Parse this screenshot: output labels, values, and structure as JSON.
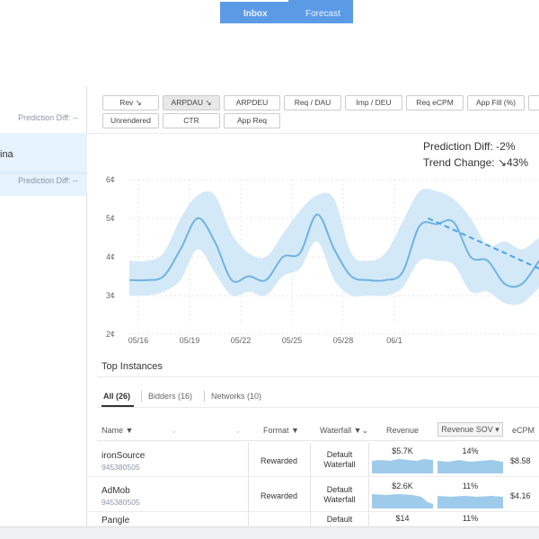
{
  "topbar": {
    "inbox": "Inbox",
    "forecast": "Forecast"
  },
  "left_panel": {
    "prediction_diff_1": "Prediction Diff: --",
    "selected_name": "ina",
    "prediction_diff_2": "Prediction Diff: --"
  },
  "metrics": {
    "row1": [
      {
        "label": "Rev ↘"
      },
      {
        "label": "ARPDAU ↘"
      },
      {
        "label": "ARPDEU"
      },
      {
        "label": "Req / DAU"
      },
      {
        "label": "Imp / DEU"
      },
      {
        "label": "Req eCPM"
      },
      {
        "label": "App Fill (%)"
      }
    ],
    "row2": [
      {
        "label": "Unrendered"
      },
      {
        "label": "CTR"
      },
      {
        "label": "App Req"
      }
    ],
    "active": "ARPDAU ↘"
  },
  "summary": {
    "prediction_diff": "Prediction Diff: -2%",
    "trend_change": "Trend Change: ↘43%"
  },
  "chart_data": {
    "type": "line",
    "yticks": [
      "6¢",
      "5¢",
      "4¢",
      "3¢",
      "2¢"
    ],
    "ylim": [
      2,
      6
    ],
    "xticks": [
      "05/16",
      "05/19",
      "05/22",
      "05/25",
      "05/28",
      "06/1"
    ],
    "x": [
      0,
      1,
      2,
      3,
      4,
      5,
      6,
      7,
      8,
      9,
      10,
      11,
      12,
      13,
      14,
      15,
      16,
      17,
      18,
      19,
      20,
      21,
      22,
      23,
      24
    ],
    "series": [
      {
        "values": [
          3.4,
          3.4,
          3.5,
          4.2,
          5.0,
          4.4,
          3.4,
          3.5,
          3.4,
          4.0,
          4.1,
          5.1,
          4.2,
          3.5,
          3.4,
          3.4,
          3.6,
          4.8,
          4.85,
          4.9,
          4.0,
          3.9,
          3.3,
          3.3,
          3.9
        ]
      }
    ],
    "band_upper": [
      3.9,
      3.9,
      4.1,
      5.0,
      5.6,
      5.6,
      4.6,
      4.1,
      4.0,
      4.6,
      5.2,
      5.6,
      5.5,
      4.1,
      3.9,
      4.1,
      4.9,
      5.7,
      5.7,
      5.5,
      5.0,
      4.3,
      4.4,
      4.2,
      4.5
    ],
    "band_lower": [
      3.0,
      3.0,
      3.1,
      3.4,
      4.2,
      3.6,
      3.0,
      3.1,
      3.0,
      3.5,
      3.7,
      4.4,
      3.4,
      3.0,
      3.0,
      3.0,
      3.2,
      3.9,
      3.9,
      3.8,
      3.1,
      3.1,
      2.8,
      2.8,
      3.2
    ],
    "trend_line": {
      "x": [
        17.5,
        24.5
      ],
      "y": [
        5.0,
        3.6
      ]
    },
    "grid": true
  },
  "top_instances": {
    "title": "Top Instances",
    "tabs": [
      "All (26)",
      "Bidders (16)",
      "Networks (10)"
    ],
    "headers": {
      "name": "Name ▼",
      "format": "Format ▼",
      "waterfall": "Waterfall ▼⌄",
      "revenue": "Revenue",
      "revenue_sov": "Revenue SOV ▾",
      "ecpm": "eCPM"
    },
    "rows": [
      {
        "name": "ironSource",
        "id": "945380505",
        "format": "Rewarded",
        "waterfall_1": "Default",
        "waterfall_2": "Waterfall",
        "revenue": "$5.7K",
        "sov": "14%",
        "ecpm": "$8.58"
      },
      {
        "name": "AdMob",
        "id": "945380505",
        "format": "Rewarded",
        "waterfall_1": "Default",
        "waterfall_2": "Waterfall",
        "revenue": "$2.6K",
        "sov": "11%",
        "ecpm": "$4.16"
      },
      {
        "name": "Pangle",
        "id": "",
        "format": "",
        "waterfall_1": "Default",
        "waterfall_2": "",
        "revenue": "$14",
        "sov": "11%",
        "ecpm": ""
      }
    ]
  },
  "colors": {
    "accent": "#5b9be6",
    "line": "#6fb3e3",
    "band": "#d4e9f8"
  }
}
